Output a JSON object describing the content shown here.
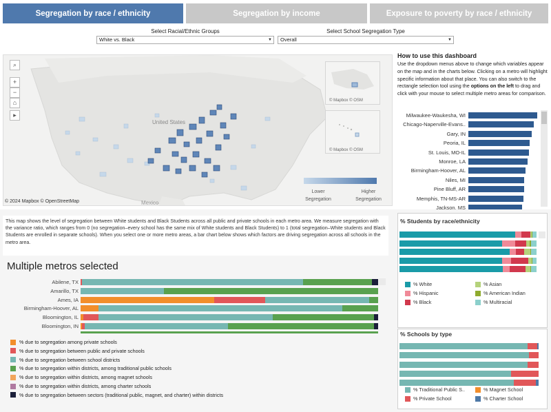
{
  "tabs": [
    {
      "label": "Segregation by race / ethnicity",
      "active": true
    },
    {
      "label": "Segregation by income",
      "active": false
    },
    {
      "label": "Exposure to poverty by race / ethnicity",
      "active": false
    }
  ],
  "filters": {
    "groups_label": "Select Racial/Ethnic Groups",
    "groups_value": "White vs. Black",
    "type_label": "Select School Segregation Type",
    "type_value": "Overall"
  },
  "map": {
    "attribution": "© 2024 Mapbox  © OpenStreetMap",
    "label_states": "United States",
    "label_mexico": "Mexico",
    "inset_credit": "© Mapbox  © OSM",
    "legend_low": "Lower Segregation",
    "legend_high": "Higher Segregation",
    "colors": {
      "low": "#c6d8ea",
      "high": "#4f79ad"
    }
  },
  "howto": {
    "title": "How to use this dashboard",
    "body_a": "Use the dropdown menus above to change which variables appear on the map and in the charts below. Clicking on a metro will highlight specific information about that place. You can also switch to the rectangle selection tool using the ",
    "body_b": "options on the left",
    "body_c": " to drag and click with your mouse to select multiple metro areas for comparison."
  },
  "ranking": {
    "metros": [
      "Milwaukee-Waukesha, WI",
      "Chicago-Naperville-Evans..",
      "Gary, IN",
      "Peoria, IL",
      "St. Louis, MO-IL",
      "Monroe, LA",
      "Birmingham-Hoover, AL",
      "Niles, MI",
      "Pine Bluff, AR",
      "Memphis, TN-MS-AR",
      "Jackson, MS"
    ],
    "values": [
      0.64,
      0.61,
      0.59,
      0.57,
      0.56,
      0.55,
      0.53,
      0.52,
      0.52,
      0.51,
      0.5
    ],
    "color": "#2e5a8f"
  },
  "description": "This map shows the level of segregation between White students and Black Students across all public and private schools in each metro area. We measure segregation with the variance ratio, which ranges from 0 (no segregation–every school has the same mix of White students and Black Students) to 1 (total segregation–White students and Black Students are enrolled in separate schools). When you select one or more metro areas, a bar chart below shows which factors are driving segregation across all schools in the metro area.",
  "multi": {
    "title": "Multiple metros selected",
    "metros": [
      "Abilene, TX",
      "Amarillo, TX",
      "Ames, IA",
      "Birmingham-Hoover, AL",
      "Bloomington, IL",
      "Bloomington, IN"
    ],
    "components": [
      {
        "label": "% due to segregation among private schools",
        "color": "#f28e2b"
      },
      {
        "label": "% due to segregation between public and private schools",
        "color": "#e15759"
      },
      {
        "label": "% due to segregation between school districts",
        "color": "#76b7b2"
      },
      {
        "label": "% due to segregation within districts, among traditional public schools",
        "color": "#59a14f"
      },
      {
        "label": "% due to segregation within districts, among magnet schools",
        "color": "#f1a55a"
      },
      {
        "label": "% due to segregation within districts, among charter schools",
        "color": "#b07aa1"
      },
      {
        "label": "% due to segregation between sectors (traditional public, magnet, and charter) within districts",
        "color": "#1b1f3a"
      }
    ],
    "shares": [
      [
        0,
        0.5,
        74,
        23,
        0,
        0,
        2
      ],
      [
        0,
        0,
        28,
        72,
        0,
        0,
        0
      ],
      [
        45,
        17,
        35,
        3,
        0,
        0,
        0
      ],
      [
        6,
        0,
        82,
        12,
        0,
        0,
        0
      ],
      [
        1,
        5,
        59,
        34,
        0,
        0,
        1.5
      ],
      [
        0.5,
        1,
        48,
        49,
        0,
        0,
        1.5
      ]
    ]
  },
  "students_panel": {
    "title": "% Students by race/ethnicity",
    "groups": [
      {
        "label": "% White",
        "color": "#1a9ba8"
      },
      {
        "label": "% Asian",
        "color": "#b5d27b"
      },
      {
        "label": "% Hispanic",
        "color": "#f08a98"
      },
      {
        "label": "% American Indian",
        "color": "#8fab2e"
      },
      {
        "label": "% Black",
        "color": "#d1394d"
      },
      {
        "label": "% Multiracial",
        "color": "#8cd0cc"
      }
    ],
    "shares": [
      [
        80,
        1,
        4,
        0.5,
        6,
        3
      ],
      [
        72,
        2,
        9,
        1,
        8,
        4
      ],
      [
        77,
        4,
        4,
        0.5,
        6,
        4
      ],
      [
        70,
        2,
        6,
        0.5,
        12,
        3
      ],
      [
        72,
        3,
        5,
        0.5,
        11,
        4
      ],
      [
        75,
        2,
        4,
        1,
        10,
        3
      ]
    ]
  },
  "schools_panel": {
    "title": "% Schools by type",
    "types": [
      {
        "label": "% Traditional Public S..",
        "color": "#76b7b2"
      },
      {
        "label": "% Magnet School",
        "color": "#f28e2b"
      },
      {
        "label": "% Private School",
        "color": "#e15759"
      },
      {
        "label": "% Charter School",
        "color": "#4e79a7"
      }
    ],
    "shares": [
      [
        92,
        0,
        7,
        1
      ],
      [
        93,
        0,
        7,
        0
      ],
      [
        92,
        0,
        8,
        0
      ],
      [
        80,
        0,
        20,
        0
      ],
      [
        82,
        0,
        16,
        2
      ],
      [
        80,
        0,
        18,
        2
      ]
    ]
  }
}
